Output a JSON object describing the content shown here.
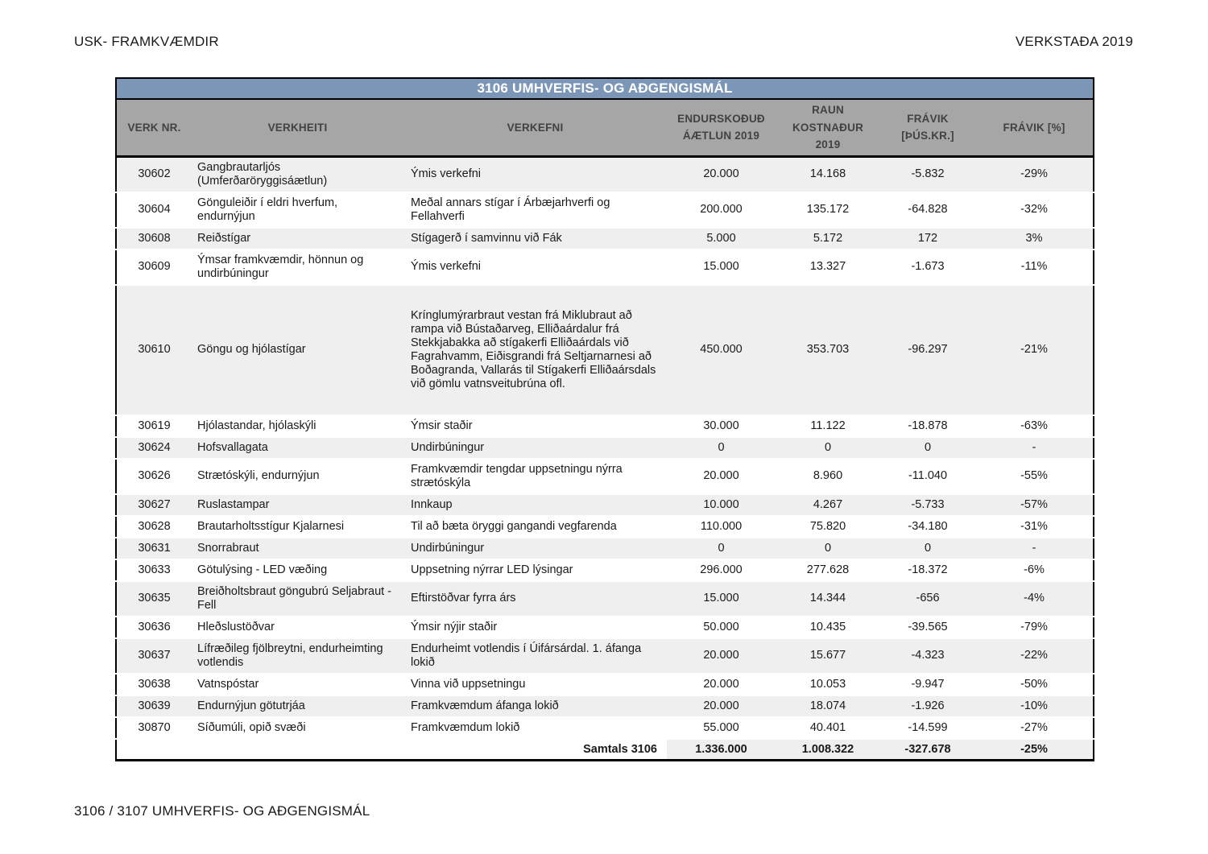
{
  "page": {
    "header_left": "USK- FRAMKVÆMDIR",
    "header_right": "VERKSTAÐA 2019",
    "footer": "3106 / 3107 UMHVERFIS- OG AÐGENGISMÁL"
  },
  "colors": {
    "title_bar_bg": "#7c96b8",
    "title_bar_text": "#ffffff",
    "column_header_bg": "#a6a6a6",
    "column_header_text": "#424242",
    "row_stripe": "#efefef",
    "table_border": "#000000"
  },
  "table": {
    "title": "3106 UMHVERFIS- OG AÐGENGISMÁL",
    "columns": [
      "VERK NR.",
      "VERKHEITI",
      "VERKEFNI",
      "ENDURSKOÐUÐ ÁÆTLUN 2019",
      "RAUN KOSTNAÐUR 2019",
      "FRÁVIK [ÞÚS.KR.]",
      "FRÁVIK [%]"
    ],
    "rows": [
      {
        "verk_nr": "30602",
        "verkheiti": "Gangbrautarljós (Umferðaröryggisáætlun)",
        "verkefni": "Ýmis verkefni",
        "aetlun_2019": "20.000",
        "raun_2019": "14.168",
        "fravik_thus_kr": "-5.832",
        "fravik_pct": "-29%"
      },
      {
        "verk_nr": "30604",
        "verkheiti": "Gönguleiðir í eldri hverfum, endurnýjun",
        "verkefni": "Meðal annars stígar í Árbæjarhverfi og Fellahverfi",
        "aetlun_2019": "200.000",
        "raun_2019": "135.172",
        "fravik_thus_kr": "-64.828",
        "fravik_pct": "-32%"
      },
      {
        "verk_nr": "30608",
        "verkheiti": "Reiðstígar",
        "verkefni": "Stígagerð í samvinnu við Fák",
        "aetlun_2019": "5.000",
        "raun_2019": "5.172",
        "fravik_thus_kr": "172",
        "fravik_pct": "3%"
      },
      {
        "verk_nr": "30609",
        "verkheiti": "Ýmsar framkvæmdir, hönnun og undirbúningur",
        "verkefni": "Ýmis verkefni",
        "aetlun_2019": "15.000",
        "raun_2019": "13.327",
        "fravik_thus_kr": "-1.673",
        "fravik_pct": "-11%"
      },
      {
        "verk_nr": "30610",
        "verkheiti": "Göngu og hjólastígar",
        "verkefni": "Krínglumýrarbraut vestan frá Miklubraut að rampa við Bústaðarveg, Elliðaárdalur frá Stekkjabakka að stígakerfi Elliðaárdals við Fagrahvamm, Eiðisgrandi frá Seltjarnarnesi að Boðagranda, Vallarás til Stígakerfi Elliðaársdals við gömlu vatnsveitubrúna ofl.",
        "aetlun_2019": "450.000",
        "raun_2019": "353.703",
        "fravik_thus_kr": "-96.297",
        "fravik_pct": "-21%"
      },
      {
        "verk_nr": "30619",
        "verkheiti": "Hjólastandar, hjólaskýli",
        "verkefni": "Ýmsir staðir",
        "aetlun_2019": "30.000",
        "raun_2019": "11.122",
        "fravik_thus_kr": "-18.878",
        "fravik_pct": "-63%"
      },
      {
        "verk_nr": "30624",
        "verkheiti": "Hofsvallagata",
        "verkefni": "Undirbúningur",
        "aetlun_2019": "0",
        "raun_2019": "0",
        "fravik_thus_kr": "0",
        "fravik_pct": "-"
      },
      {
        "verk_nr": "30626",
        "verkheiti": "Strætóskýli, endurnýjun",
        "verkefni": "Framkvæmdir tengdar uppsetningu nýrra strætóskýla",
        "aetlun_2019": "20.000",
        "raun_2019": "8.960",
        "fravik_thus_kr": "-11.040",
        "fravik_pct": "-55%"
      },
      {
        "verk_nr": "30627",
        "verkheiti": "Ruslastampar",
        "verkefni": "Innkaup",
        "aetlun_2019": "10.000",
        "raun_2019": "4.267",
        "fravik_thus_kr": "-5.733",
        "fravik_pct": "-57%"
      },
      {
        "verk_nr": "30628",
        "verkheiti": "Brautarholtsstígur Kjalarnesi",
        "verkefni": "Til að bæta öryggi gangandi vegfarenda",
        "aetlun_2019": "110.000",
        "raun_2019": "75.820",
        "fravik_thus_kr": "-34.180",
        "fravik_pct": "-31%"
      },
      {
        "verk_nr": "30631",
        "verkheiti": "Snorrabraut",
        "verkefni": "Undirbúningur",
        "aetlun_2019": "0",
        "raun_2019": "0",
        "fravik_thus_kr": "0",
        "fravik_pct": "-"
      },
      {
        "verk_nr": "30633",
        "verkheiti": "Götulýsing - LED væðing",
        "verkefni": "Uppsetning nýrrar LED lýsingar",
        "aetlun_2019": "296.000",
        "raun_2019": "277.628",
        "fravik_thus_kr": "-18.372",
        "fravik_pct": "-6%"
      },
      {
        "verk_nr": "30635",
        "verkheiti": "Breiðholtsbraut göngubrú Seljabraut - Fell",
        "verkefni": "Eftirstöðvar fyrra árs",
        "aetlun_2019": "15.000",
        "raun_2019": "14.344",
        "fravik_thus_kr": "-656",
        "fravik_pct": "-4%"
      },
      {
        "verk_nr": "30636",
        "verkheiti": "Hleðslustöðvar",
        "verkefni": "Ýmsir nýjir staðir",
        "aetlun_2019": "50.000",
        "raun_2019": "10.435",
        "fravik_thus_kr": "-39.565",
        "fravik_pct": "-79%"
      },
      {
        "verk_nr": "30637",
        "verkheiti": "Lífræðileg fjölbreytni, endurheimting votlendis",
        "verkefni": "Endurheimt votlendis í Úifársárdal. 1. áfanga lokið",
        "aetlun_2019": "20.000",
        "raun_2019": "15.677",
        "fravik_thus_kr": "-4.323",
        "fravik_pct": "-22%"
      },
      {
        "verk_nr": "30638",
        "verkheiti": "Vatnspóstar",
        "verkefni": "Vinna við uppsetningu",
        "aetlun_2019": "20.000",
        "raun_2019": "10.053",
        "fravik_thus_kr": "-9.947",
        "fravik_pct": "-50%"
      },
      {
        "verk_nr": "30639",
        "verkheiti": "Endurnýjun götutrjáa",
        "verkefni": "Framkvæmdum áfanga lokið",
        "aetlun_2019": "20.000",
        "raun_2019": "18.074",
        "fravik_thus_kr": "-1.926",
        "fravik_pct": "-10%"
      },
      {
        "verk_nr": "30870",
        "verkheiti": "Síðumúli, opið svæði",
        "verkefni": "Framkvæmdum lokið",
        "aetlun_2019": "55.000",
        "raun_2019": "40.401",
        "fravik_thus_kr": "-14.599",
        "fravik_pct": "-27%"
      }
    ],
    "totals": {
      "label": "Samtals 3106",
      "aetlun_2019": "1.336.000",
      "raun_2019": "1.008.322",
      "fravik_thus_kr": "-327.678",
      "fravik_pct": "-25%"
    }
  }
}
